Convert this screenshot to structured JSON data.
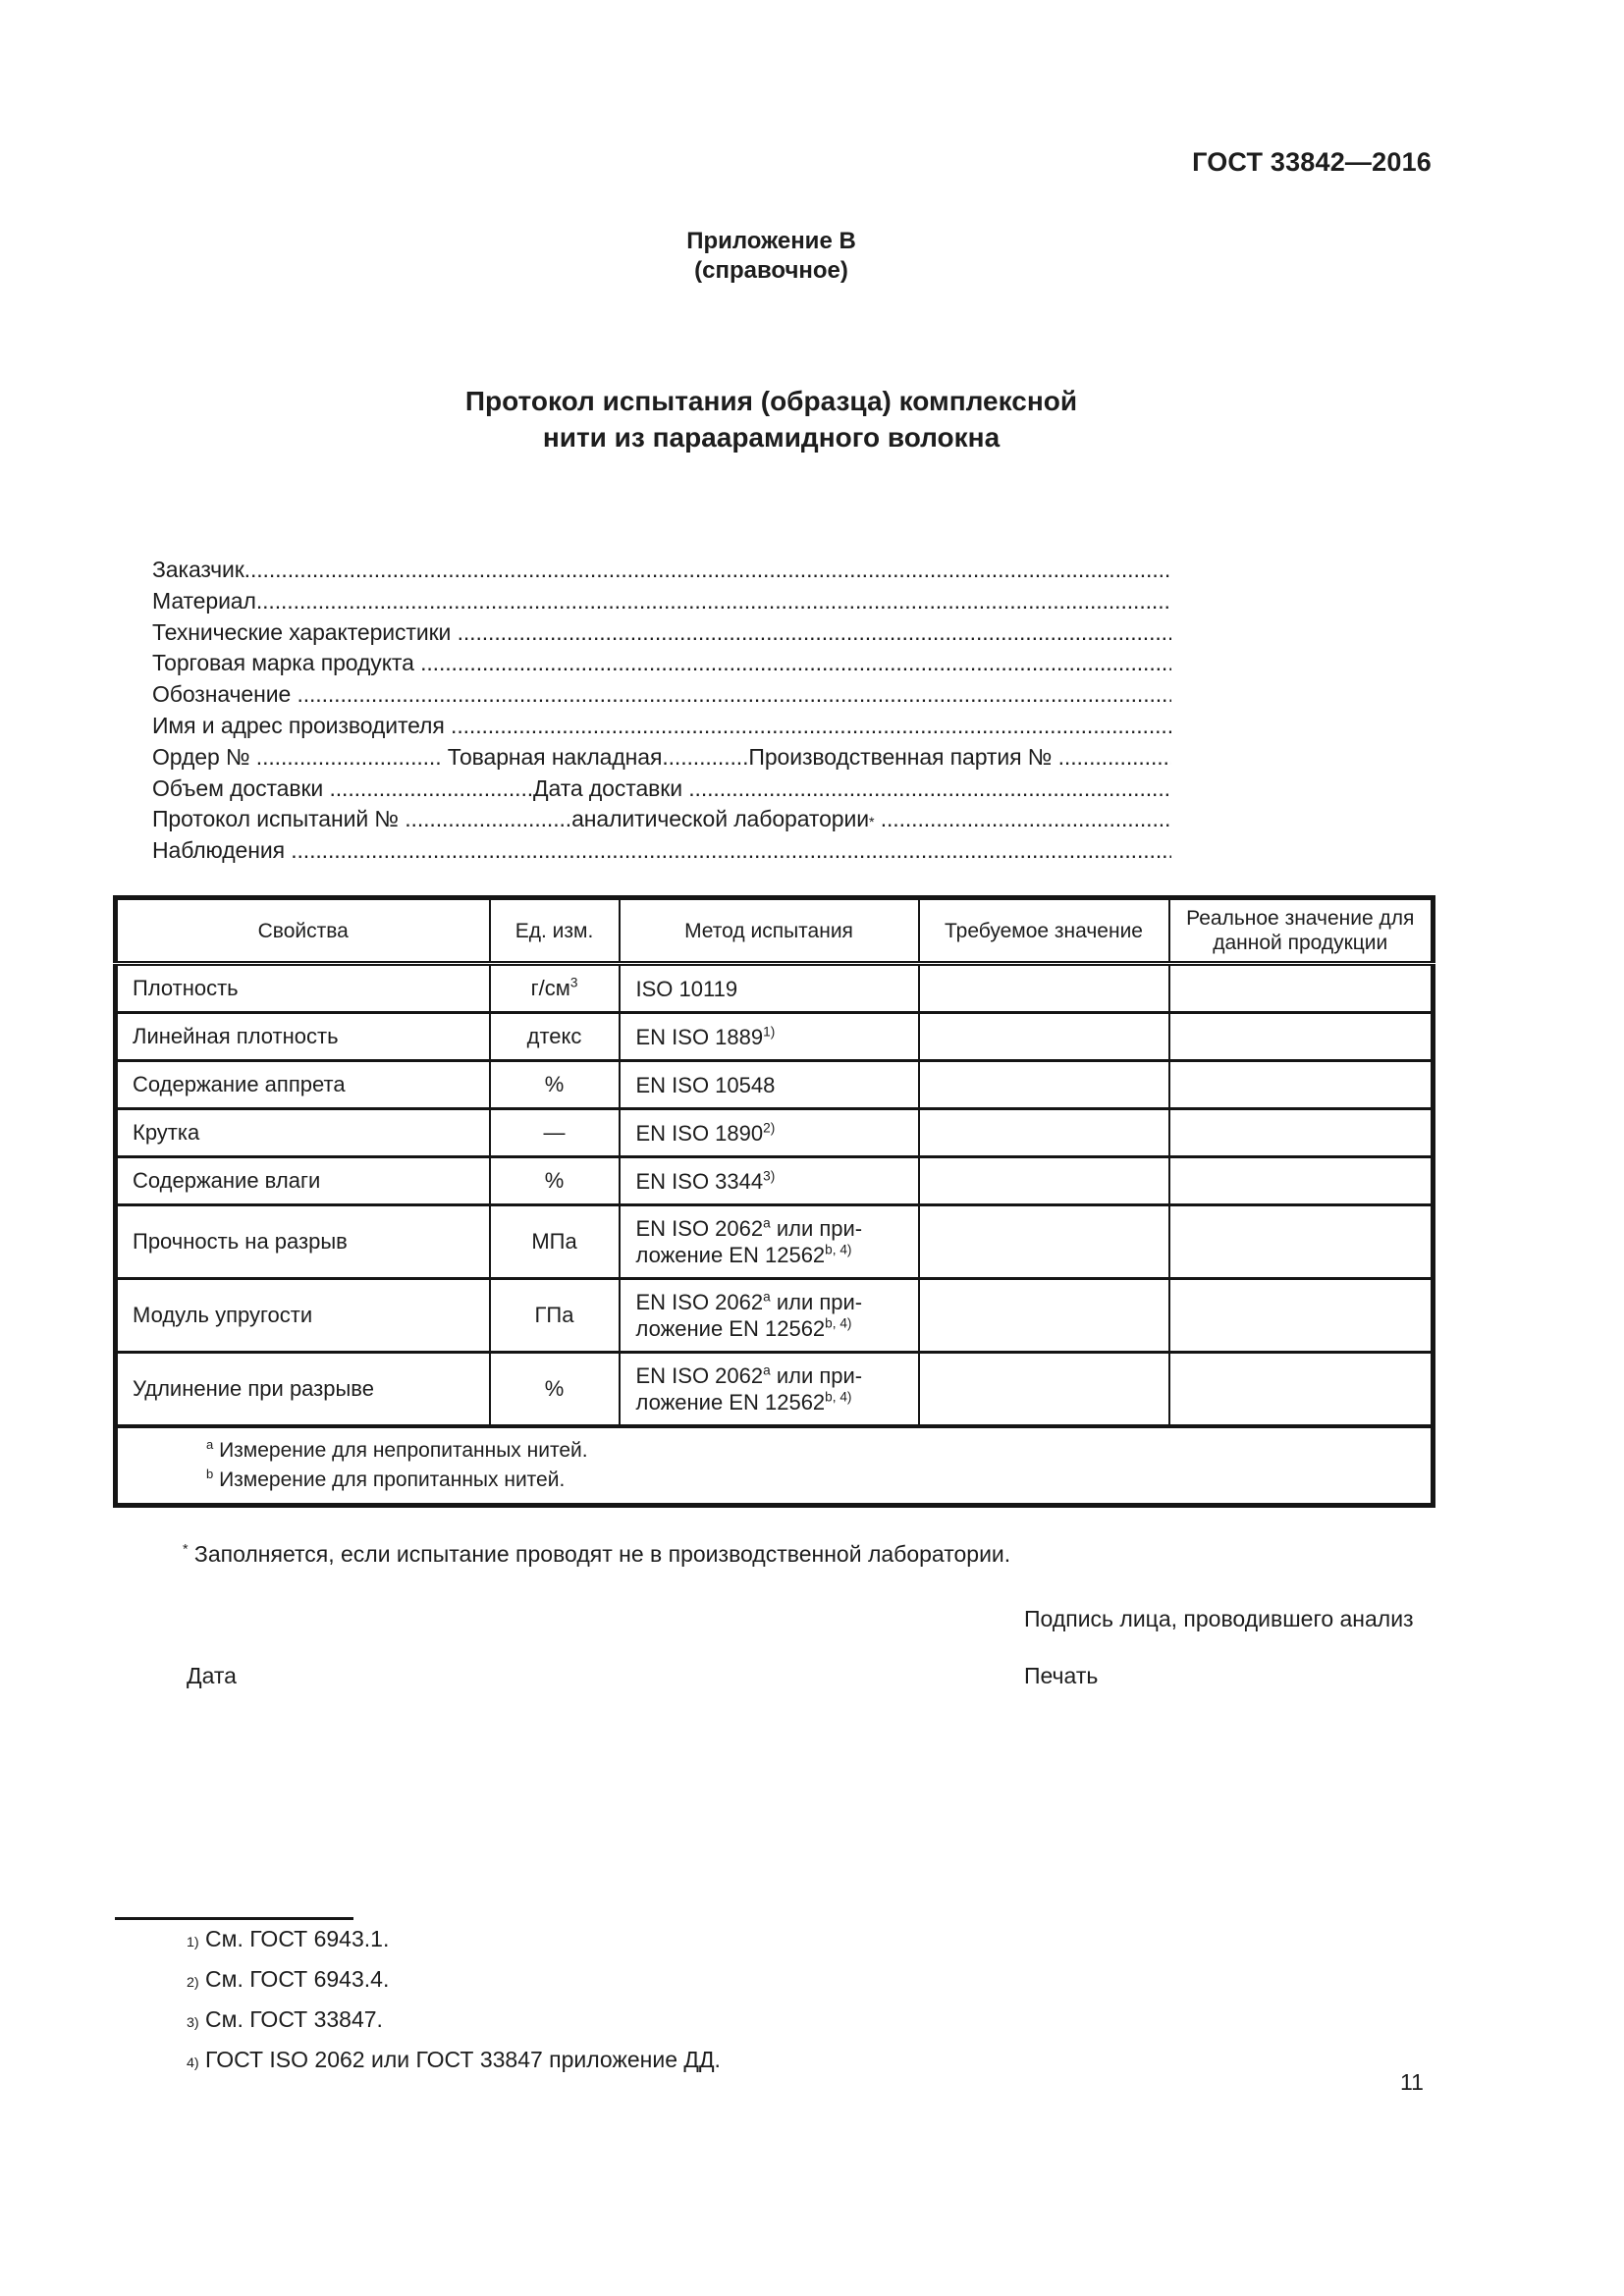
{
  "header": {
    "standard_code": "ГОСТ 33842—2016",
    "page_number": "11"
  },
  "annex": {
    "line1": "Приложение В",
    "line2": "(справочное)"
  },
  "title": {
    "line1": "Протокол испытания (образца) комплексной",
    "line2": "нити из параарамидного волокна"
  },
  "form_lines": [
    {
      "segments": [
        {
          "t": "Заказчик"
        },
        {
          "fill": true
        }
      ]
    },
    {
      "segments": [
        {
          "t": "Материал"
        },
        {
          "fill": true
        }
      ]
    },
    {
      "segments": [
        {
          "t": "Технические характеристики "
        },
        {
          "fill": true
        }
      ]
    },
    {
      "segments": [
        {
          "t": "Торговая марка продукта "
        },
        {
          "fill": true
        }
      ]
    },
    {
      "segments": [
        {
          "t": "Обозначение "
        },
        {
          "fill": true
        }
      ]
    },
    {
      "segments": [
        {
          "t": "Имя и адрес производителя "
        },
        {
          "fill": true
        }
      ]
    },
    {
      "segments": [
        {
          "t": "Ордер № .............................. Товарная накладная..............Производственная партия № "
        },
        {
          "fill": true
        }
      ]
    },
    {
      "segments": [
        {
          "t": "Объем доставки .................................Дата доставки "
        },
        {
          "fill": true
        }
      ]
    },
    {
      "segments": [
        {
          "t": "Протокол испытаний № ...........................аналитической лаборатории"
        },
        {
          "sup": "*"
        },
        {
          "t": " "
        },
        {
          "fill": true
        }
      ]
    },
    {
      "segments": [
        {
          "t": "Наблюдения "
        },
        {
          "fill": true
        }
      ]
    }
  ],
  "table": {
    "headers": [
      "Свойства",
      "Ед. изм.",
      "Метод испытания",
      "Требуемое значение",
      "Реальное значение для данной продукции"
    ],
    "rows": [
      {
        "tall": false,
        "property": "Плотность",
        "unit": [
          {
            "t": "г/см"
          },
          {
            "sup": "3"
          }
        ],
        "method": [
          {
            "t": "ISO 10119"
          }
        ],
        "required": "",
        "actual": ""
      },
      {
        "tall": false,
        "property": "Линейная плотность",
        "unit": [
          {
            "t": "дтекс"
          }
        ],
        "method": [
          {
            "t": "EN ISO 1889"
          },
          {
            "sup": "1)"
          }
        ],
        "required": "",
        "actual": ""
      },
      {
        "tall": false,
        "property": "Содержание аппрета",
        "unit": [
          {
            "t": "%"
          }
        ],
        "method": [
          {
            "t": "EN ISO 10548"
          }
        ],
        "required": "",
        "actual": ""
      },
      {
        "tall": false,
        "property": "Крутка",
        "unit": [
          {
            "t": "—"
          }
        ],
        "method": [
          {
            "t": "EN ISO 1890"
          },
          {
            "sup": "2)"
          }
        ],
        "required": "",
        "actual": ""
      },
      {
        "tall": false,
        "property": "Содержание влаги",
        "unit": [
          {
            "t": "%"
          }
        ],
        "method": [
          {
            "t": "EN ISO 3344"
          },
          {
            "sup": "3)"
          }
        ],
        "required": "",
        "actual": ""
      },
      {
        "tall": true,
        "property": "Прочность на разрыв",
        "unit": [
          {
            "t": "МПа"
          }
        ],
        "method": [
          {
            "t": "EN ISO 2062"
          },
          {
            "sup": "a"
          },
          {
            "t": " или при-"
          },
          {
            "br": true
          },
          {
            "t": "ложение EN 12562"
          },
          {
            "sup": "b, 4)"
          }
        ],
        "required": "",
        "actual": ""
      },
      {
        "tall": true,
        "property": "Модуль упругости",
        "unit": [
          {
            "t": "ГПа"
          }
        ],
        "method": [
          {
            "t": "EN ISO 2062"
          },
          {
            "sup": "a"
          },
          {
            "t": " или при-"
          },
          {
            "br": true
          },
          {
            "t": "ложение EN 12562"
          },
          {
            "sup": "b, 4)"
          }
        ],
        "required": "",
        "actual": ""
      },
      {
        "tall": true,
        "property": "Удлинение при разрыве",
        "unit": [
          {
            "t": "%"
          }
        ],
        "method": [
          {
            "t": "EN ISO 2062"
          },
          {
            "sup": "a"
          },
          {
            "t": " или при-"
          },
          {
            "br": true
          },
          {
            "t": "ложение EN 12562"
          },
          {
            "sup": "b, 4)"
          }
        ],
        "required": "",
        "actual": ""
      }
    ],
    "footnotes": [
      [
        {
          "sup": "a"
        },
        {
          "t": " Измерение для непропитанных нитей."
        }
      ],
      [
        {
          "sup": "b"
        },
        {
          "t": " Измерение для пропитанных нитей."
        }
      ]
    ]
  },
  "notes": {
    "star_note": [
      {
        "sup": "*"
      },
      {
        "t": " Заполняется, если испытание проводят не в производственной лаборатории."
      }
    ],
    "signature": "Подпись лица, проводившего анализ",
    "date_label": "Дата",
    "stamp_label": "Печать"
  },
  "footnotes_bottom": [
    [
      {
        "sup": "1)"
      },
      {
        "t": " См. ГОСТ 6943.1."
      }
    ],
    [
      {
        "sup": "2)"
      },
      {
        "t": " См. ГОСТ 6943.4."
      }
    ],
    [
      {
        "sup": "3)"
      },
      {
        "t": " См. ГОСТ 33847."
      }
    ],
    [
      {
        "sup": "4)"
      },
      {
        "t": " ГОСТ ISO 2062 или ГОСТ 33847 приложение ДД."
      }
    ]
  ]
}
